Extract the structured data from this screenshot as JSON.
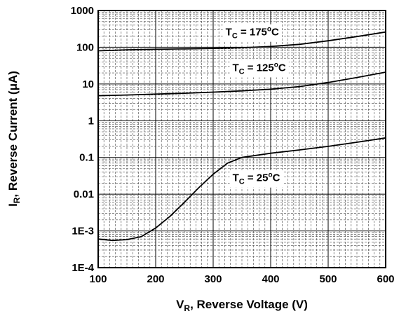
{
  "chart_data": {
    "type": "line",
    "xlabel": {
      "main": "V",
      "sub": "R",
      "rest": ", Reverse Voltage (V)"
    },
    "ylabel": {
      "main": "I",
      "sub": "R",
      "rest": ", Reverse Current (μA)"
    },
    "x_scale": "linear",
    "y_scale": "log",
    "xlim": [
      100,
      600
    ],
    "ylim": [
      0.0001,
      1000
    ],
    "grid": true,
    "x_ticks": [
      {
        "value": 100,
        "label": "100"
      },
      {
        "value": 200,
        "label": "200"
      },
      {
        "value": 300,
        "label": "300"
      },
      {
        "value": 400,
        "label": "400"
      },
      {
        "value": 500,
        "label": "500"
      },
      {
        "value": 600,
        "label": "600"
      }
    ],
    "y_ticks": [
      {
        "value": 1000,
        "label": "1000"
      },
      {
        "value": 100,
        "label": "100"
      },
      {
        "value": 10,
        "label": "10"
      },
      {
        "value": 1,
        "label": "1"
      },
      {
        "value": 0.1,
        "label": "0.1"
      },
      {
        "value": 0.01,
        "label": "0.01"
      },
      {
        "value": 0.001,
        "label": "1E-3"
      },
      {
        "value": 0.0001,
        "label": "1E-4"
      }
    ],
    "series": [
      {
        "label_parts": {
          "main": "T",
          "sub": "C",
          "rest": " = 175",
          "deg": "o",
          "unit": "C"
        },
        "label_at": {
          "x": 368,
          "y": 260
        },
        "x": [
          100,
          125,
          150,
          200,
          250,
          300,
          350,
          400,
          450,
          500,
          550,
          600
        ],
        "y": [
          80,
          82,
          85,
          88,
          90,
          93,
          97,
          105,
          120,
          150,
          195,
          260
        ]
      },
      {
        "label_parts": {
          "main": "T",
          "sub": "C",
          "rest": " = 125",
          "deg": "o",
          "unit": "C"
        },
        "label_at": {
          "x": 380,
          "y": 28
        },
        "x": [
          100,
          125,
          150,
          200,
          250,
          300,
          350,
          400,
          450,
          500,
          550,
          600
        ],
        "y": [
          4.8,
          4.9,
          5.0,
          5.3,
          5.6,
          6.0,
          6.5,
          7.2,
          8.5,
          11,
          15,
          21
        ]
      },
      {
        "label_parts": {
          "main": "T",
          "sub": "C",
          "rest": " = 25",
          "deg": "o",
          "unit": "C"
        },
        "label_at": {
          "x": 375,
          "y": 0.028
        },
        "x": [
          100,
          125,
          150,
          175,
          200,
          225,
          250,
          275,
          300,
          325,
          350,
          400,
          450,
          500,
          550,
          600
        ],
        "y": [
          0.0006,
          0.00055,
          0.00058,
          0.0007,
          0.0012,
          0.0025,
          0.006,
          0.015,
          0.035,
          0.07,
          0.1,
          0.13,
          0.16,
          0.2,
          0.26,
          0.34
        ]
      }
    ]
  }
}
